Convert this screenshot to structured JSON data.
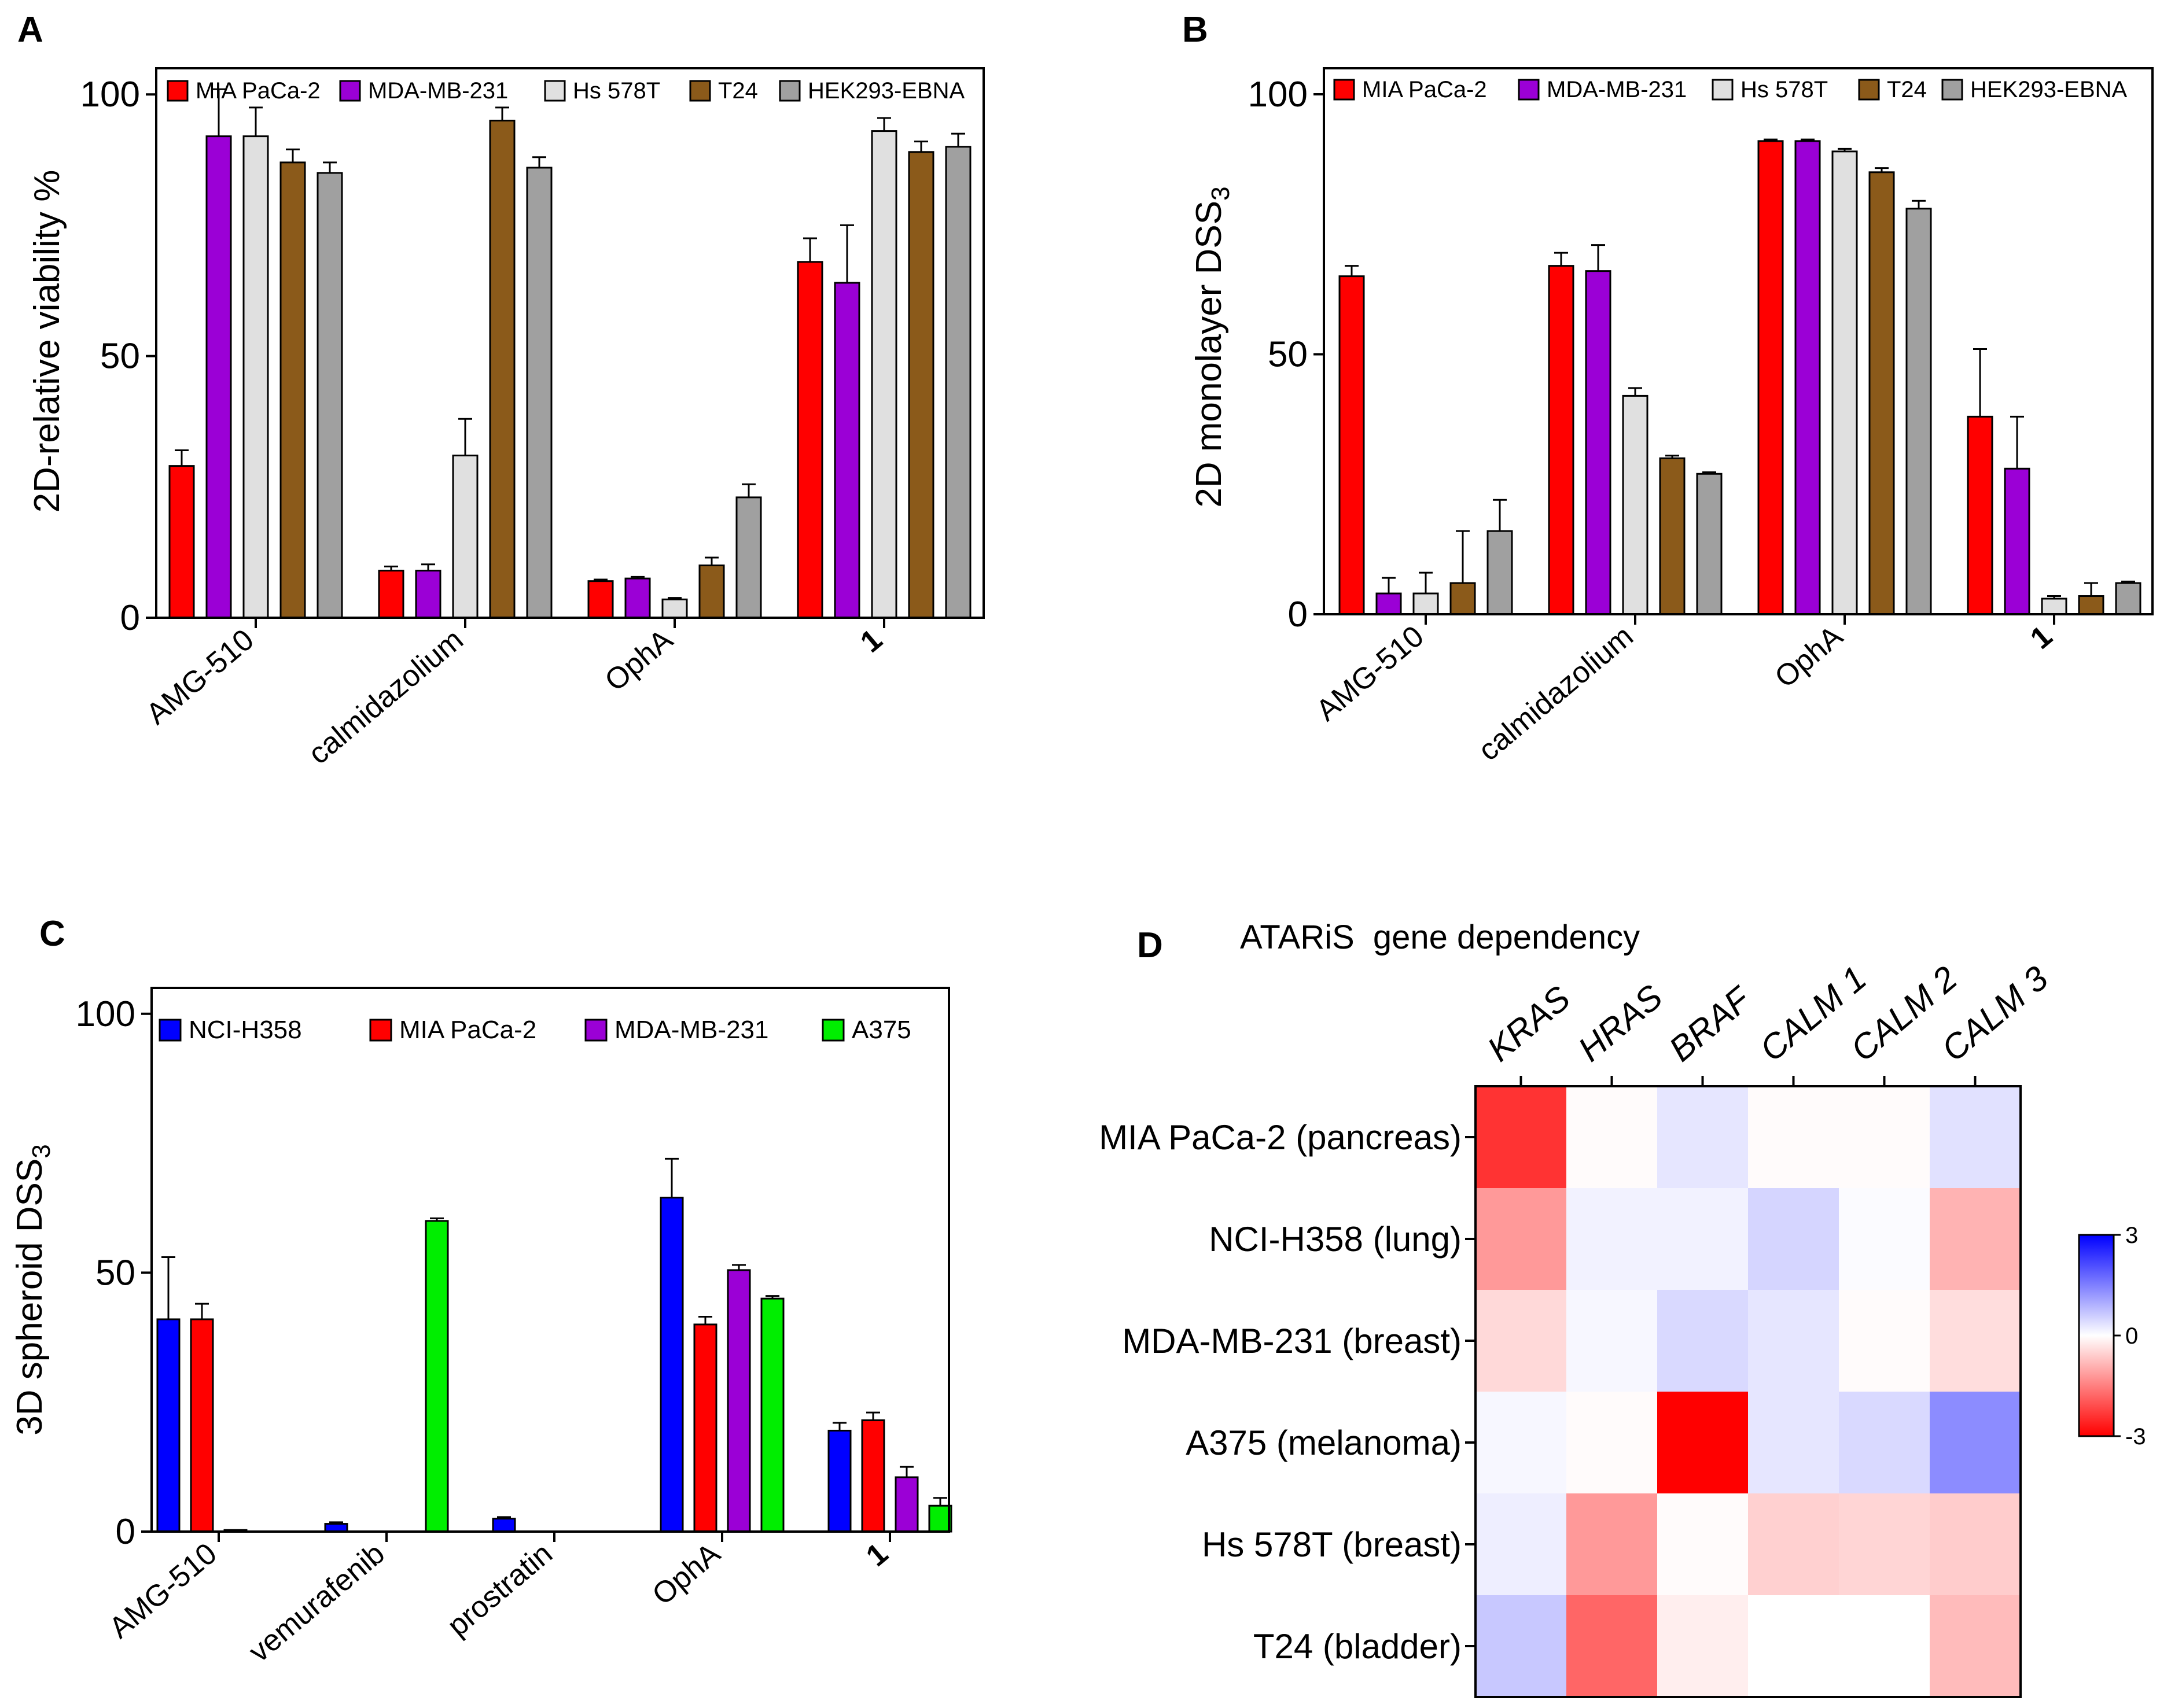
{
  "figure": {
    "panel_labels": [
      "A",
      "B",
      "C",
      "D"
    ]
  },
  "chart_data": [
    {
      "panel": "A",
      "type": "bar",
      "ylabel": "2D-relative viability %",
      "ylim": [
        0,
        105
      ],
      "yticks": [
        "0",
        "50",
        "100"
      ],
      "categories": [
        "AMG-510",
        "calmidazolium",
        "OphA",
        "1"
      ],
      "series": [
        {
          "name": "MIA PaCa-2",
          "color": "#ff0000",
          "values": [
            29,
            9,
            7,
            68
          ],
          "errors": [
            3,
            0.8,
            0.3,
            4.5
          ]
        },
        {
          "name": "MDA-MB-231",
          "color": "#9b00d6",
          "values": [
            92,
            9,
            7.5,
            64
          ],
          "errors": [
            9,
            1.2,
            0.3,
            11
          ]
        },
        {
          "name": "Hs 578T",
          "color": "#e0e0e0",
          "values": [
            92,
            31,
            3.5,
            93
          ],
          "errors": [
            5.5,
            7,
            0.3,
            2.5
          ]
        },
        {
          "name": "T24",
          "color": "#8b5a1a",
          "values": [
            87,
            95,
            10,
            89
          ],
          "errors": [
            2.5,
            2.5,
            1.5,
            2
          ]
        },
        {
          "name": "HEK293-EBNA",
          "color": "#a0a0a0",
          "values": [
            85,
            86,
            23,
            90
          ],
          "errors": [
            2,
            2,
            2.5,
            2.5
          ]
        }
      ]
    },
    {
      "panel": "B",
      "type": "bar",
      "ylabel": "2D monolayer DSS",
      "ylabel_sub": "3",
      "ylim": [
        0,
        105
      ],
      "yticks": [
        "0",
        "50",
        "100"
      ],
      "categories": [
        "AMG-510",
        "calmidazolium",
        "OphA",
        "1"
      ],
      "series": [
        {
          "name": "MIA PaCa-2",
          "color": "#ff0000",
          "values": [
            65,
            67,
            91,
            38
          ],
          "errors": [
            2,
            2.5,
            0.3,
            13
          ]
        },
        {
          "name": "MDA-MB-231",
          "color": "#9b00d6",
          "values": [
            4,
            66,
            91,
            28
          ],
          "errors": [
            3,
            5,
            0.3,
            10
          ]
        },
        {
          "name": "Hs 578T",
          "color": "#e0e0e0",
          "values": [
            4,
            42,
            89,
            3
          ],
          "errors": [
            4,
            1.5,
            0.5,
            0.5
          ]
        },
        {
          "name": "T24",
          "color": "#8b5a1a",
          "values": [
            6,
            30,
            85,
            3.5
          ],
          "errors": [
            10,
            0.5,
            0.8,
            2.5
          ]
        },
        {
          "name": "HEK293-EBNA",
          "color": "#a0a0a0",
          "values": [
            16,
            27,
            78,
            6
          ],
          "errors": [
            6,
            0.3,
            1.5,
            0.3
          ]
        }
      ]
    },
    {
      "panel": "C",
      "type": "bar",
      "ylabel": "3D spheroid DSS",
      "ylabel_sub": "3",
      "ylim": [
        0,
        105
      ],
      "yticks": [
        "0",
        "50",
        "100"
      ],
      "categories": [
        "AMG-510",
        "vemurafenib",
        "prostratin",
        "OphA",
        "1"
      ],
      "series": [
        {
          "name": "NCI-H358",
          "color": "#0000ff",
          "values": [
            41,
            1.5,
            2.5,
            64.5,
            19.5
          ],
          "errors": [
            12,
            0.3,
            0.3,
            7.5,
            1.5
          ]
        },
        {
          "name": "MIA PaCa-2",
          "color": "#ff0000",
          "values": [
            41,
            0,
            0,
            40,
            21.5
          ],
          "errors": [
            3,
            0,
            0,
            1.5,
            1.5
          ]
        },
        {
          "name": "MDA-MB-231",
          "color": "#9b00d6",
          "values": [
            0.3,
            0,
            0,
            50.5,
            10.5
          ],
          "errors": [
            0,
            0,
            0,
            1,
            2
          ]
        },
        {
          "name": "A375",
          "color": "#00ee00",
          "values": [
            0,
            60,
            0,
            45,
            5
          ],
          "errors": [
            0,
            0.5,
            0,
            0.5,
            1.5
          ]
        }
      ]
    },
    {
      "panel": "D",
      "type": "heatmap",
      "title": "ATARiS  gene dependency",
      "columns": [
        "KRAS",
        "HRAS",
        "BRAF",
        "CALM 1",
        "CALM 2",
        "CALM 3"
      ],
      "rows": [
        "MIA PaCa-2 (pancreas)",
        "NCI-H358 (lung)",
        "MDA-MB-231 (breast)",
        "A375 (melanoma)",
        "Hs 578T (breast)",
        "T24 (bladder)"
      ],
      "values": [
        [
          -2.4,
          -0.05,
          0.3,
          -0.05,
          -0.05,
          0.35
        ],
        [
          -1.2,
          0.15,
          0.15,
          0.5,
          0.05,
          -0.9
        ],
        [
          -0.45,
          0.1,
          0.45,
          0.3,
          -0.05,
          -0.4
        ],
        [
          0.1,
          -0.05,
          -3.0,
          0.3,
          0.45,
          1.35
        ],
        [
          0.2,
          -1.2,
          -0.05,
          -0.55,
          -0.5,
          -0.6
        ],
        [
          0.65,
          -1.8,
          -0.2,
          0.0,
          0.0,
          -0.8
        ]
      ],
      "colorbar": {
        "min": -3,
        "max": 3,
        "ticks": [
          "3",
          "0",
          "-3"
        ],
        "low_color": "#ff0000",
        "mid_color": "#ffffff",
        "high_color": "#0000ff"
      }
    }
  ]
}
